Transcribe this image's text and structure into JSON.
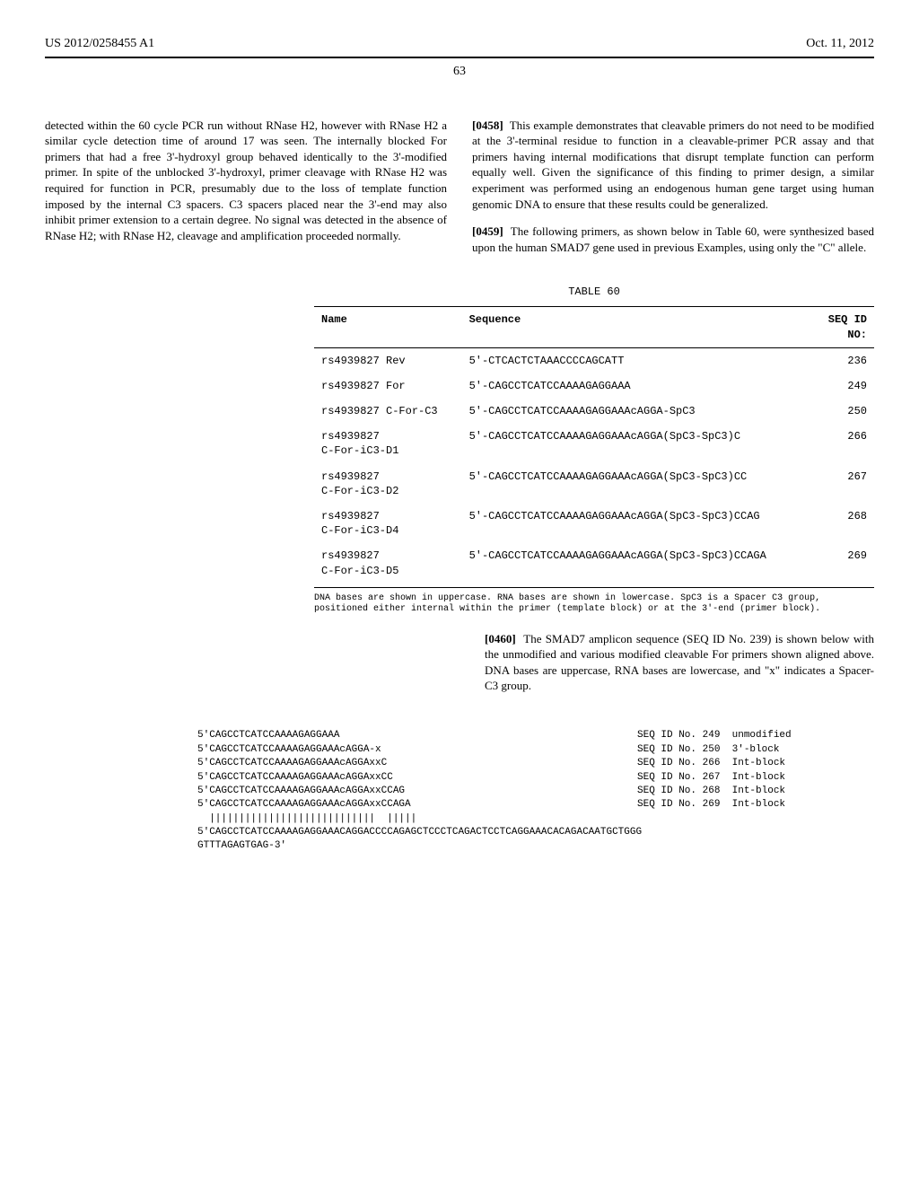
{
  "header": {
    "left": "US 2012/0258455 A1",
    "right": "Oct. 11, 2012",
    "page_number": "63"
  },
  "col_left": {
    "para1": "detected within the 60 cycle PCR run without RNase H2, however with RNase H2 a similar cycle detection time of around 17 was seen. The internally blocked For primers that had a free 3'-hydroxyl group behaved identically to the 3'-modified primer. In spite of the unblocked 3'-hydroxyl, primer cleavage with RNase H2 was required for function in PCR, presumably due to the loss of template function imposed by the internal C3 spacers. C3 spacers placed near the 3'-end may also inhibit primer extension to a certain degree. No signal was detected in the absence of RNase H2; with RNase H2, cleavage and amplification proceeded normally."
  },
  "col_right": {
    "para1_num": "[0458]",
    "para1": "This example demonstrates that cleavable primers do not need to be modified at the 3'-terminal residue to function in a cleavable-primer PCR assay and that primers having internal modifications that disrupt template function can perform equally well. Given the significance of this finding to primer design, a similar experiment was performed using an endogenous human gene target using human genomic DNA to ensure that these results could be generalized.",
    "para2_num": "[0459]",
    "para2": "The following primers, as shown below in Table 60, were synthesized based upon the human SMAD7 gene used in previous Examples, using only the \"C\" allele."
  },
  "table60": {
    "title": "TABLE 60",
    "headers": {
      "name": "Name",
      "sequence": "Sequence",
      "seqid": "SEQ ID\nNO:"
    },
    "rows": [
      {
        "name": "rs4939827 Rev",
        "sequence": "5'-CTCACTCTAAACCCCAGCATT",
        "seqid": "236"
      },
      {
        "name": "rs4939827 For",
        "sequence": "5'-CAGCCTCATCCAAAAGAGGAAA",
        "seqid": "249"
      },
      {
        "name": "rs4939827 C-For-C3",
        "sequence": "5'-CAGCCTCATCCAAAAGAGGAAAcAGGA-SpC3",
        "seqid": "250"
      },
      {
        "name": "rs4939827\nC-For-iC3-D1",
        "sequence": "5'-CAGCCTCATCCAAAAGAGGAAAcAGGA(SpC3-SpC3)C",
        "seqid": "266"
      },
      {
        "name": "rs4939827\nC-For-iC3-D2",
        "sequence": "5'-CAGCCTCATCCAAAAGAGGAAAcAGGA(SpC3-SpC3)CC",
        "seqid": "267"
      },
      {
        "name": "rs4939827\nC-For-iC3-D4",
        "sequence": "5'-CAGCCTCATCCAAAAGAGGAAAcAGGA(SpC3-SpC3)CCAG",
        "seqid": "268"
      },
      {
        "name": "rs4939827\nC-For-iC3-D5",
        "sequence": "5'-CAGCCTCATCCAAAAGAGGAAAcAGGA(SpC3-SpC3)CCAGA",
        "seqid": "269"
      }
    ],
    "footnote": "DNA bases are shown in uppercase. RNA bases are shown in lowercase. SpC3 is a Spacer C3 group, positioned either internal within the primer (template block) or at the 3'-end (primer block)."
  },
  "para460": {
    "num": "[0460]",
    "text": "The SMAD7 amplicon sequence (SEQ ID No. 239) is shown below with the unmodified and various modified cleavable For primers shown aligned above. DNA bases are uppercase, RNA bases are lowercase, and \"x\" indicates a Spacer-C3 group."
  },
  "alignment": {
    "rows": [
      {
        "seq": "5'CAGCCTCATCCAAAAGAGGAAA",
        "annot": "SEQ ID No. 249  unmodified"
      },
      {
        "seq": "5'CAGCCTCATCCAAAAGAGGAAAcAGGA-x",
        "annot": "SEQ ID No. 250  3'-block"
      },
      {
        "seq": "5'CAGCCTCATCCAAAAGAGGAAAcAGGAxxC",
        "annot": "SEQ ID No. 266  Int-block"
      },
      {
        "seq": "5'CAGCCTCATCCAAAAGAGGAAAcAGGAxxCC",
        "annot": "SEQ ID No. 267  Int-block"
      },
      {
        "seq": "5'CAGCCTCATCCAAAAGAGGAAAcAGGAxxCCAG",
        "annot": "SEQ ID No. 268  Int-block"
      },
      {
        "seq": "5'CAGCCTCATCCAAAAGAGGAAAcAGGAxxCCAGA",
        "annot": "SEQ ID No. 269  Int-block"
      },
      {
        "seq": "  ||||||||||||||||||||||||||||  |||||",
        "annot": ""
      },
      {
        "seq": "5'CAGCCTCATCCAAAAGAGGAAACAGGACCCCAGAGCTCCCTCAGACTCCTCAGGAAACACAGACAATGCTGGG",
        "annot": ""
      },
      {
        "seq": "GTTTAGAGTGAG-3'",
        "annot": ""
      }
    ]
  }
}
